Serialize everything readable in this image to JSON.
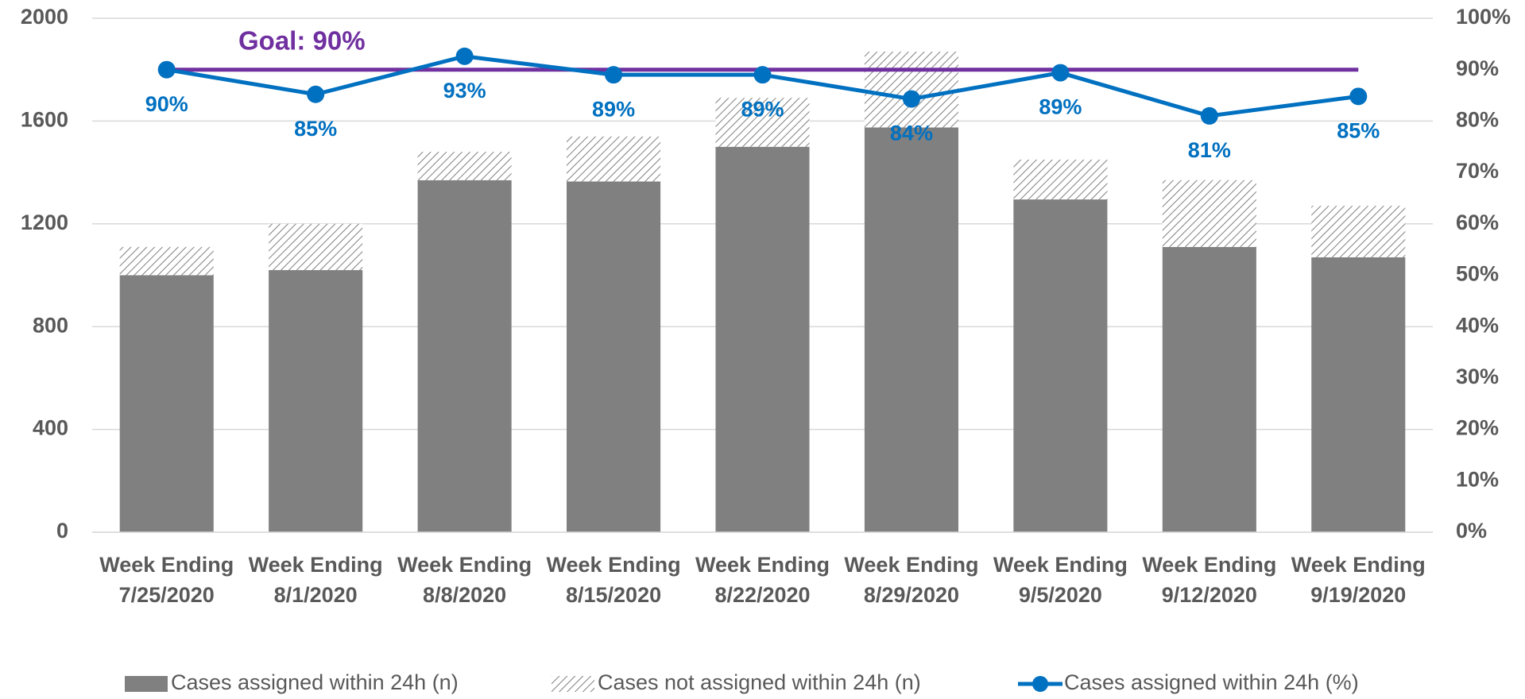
{
  "chart_data": {
    "type": "bar",
    "categories": [
      "Week Ending 7/25/2020",
      "Week Ending 8/1/2020",
      "Week Ending 8/8/2020",
      "Week Ending 8/15/2020",
      "Week Ending 8/22/2020",
      "Week Ending 8/29/2020",
      "Week Ending 9/5/2020",
      "Week Ending 9/12/2020",
      "Week Ending 9/19/2020"
    ],
    "series": [
      {
        "name": "Cases assigned within 24h (n)",
        "color": "#808080",
        "values": [
          1000,
          1020,
          1370,
          1365,
          1500,
          1575,
          1295,
          1110,
          1070
        ]
      },
      {
        "name": "Cases not assigned within 24h (n)",
        "color": "#808080",
        "pattern": "hatch",
        "values": [
          110,
          180,
          110,
          175,
          190,
          295,
          155,
          260,
          200
        ]
      },
      {
        "name": "Cases assigned within 24h (%)",
        "color": "#0070c0",
        "type": "line",
        "axis": "y2",
        "values": [
          90,
          85.2,
          92.6,
          89,
          89,
          84.3,
          89.4,
          81,
          84.8
        ],
        "value_labels": [
          "90%",
          "85%",
          "93%",
          "89%",
          "89%",
          "84%",
          "89%",
          "81%",
          "85%"
        ]
      }
    ],
    "goal": {
      "value": 90,
      "label": "Goal: 90%",
      "color": "#7030a0"
    },
    "ylim": [
      0,
      2000
    ],
    "yticks": [
      0,
      400,
      800,
      1200,
      1600,
      2000
    ],
    "y2lim": [
      0,
      100
    ],
    "y2ticks": [
      {
        "value": 0,
        "label": "0%"
      },
      {
        "value": 10,
        "label": "10%"
      },
      {
        "value": 20,
        "label": "20%"
      },
      {
        "value": 30,
        "label": "30%"
      },
      {
        "value": 40,
        "label": "40%"
      },
      {
        "value": 50,
        "label": "50%"
      },
      {
        "value": 60,
        "label": "60%"
      },
      {
        "value": 70,
        "label": "70%"
      },
      {
        "value": 80,
        "label": "80%"
      },
      {
        "value": 90,
        "label": "90%"
      },
      {
        "value": 100,
        "label": "100%"
      }
    ],
    "grid": true,
    "legend": "bottom"
  }
}
